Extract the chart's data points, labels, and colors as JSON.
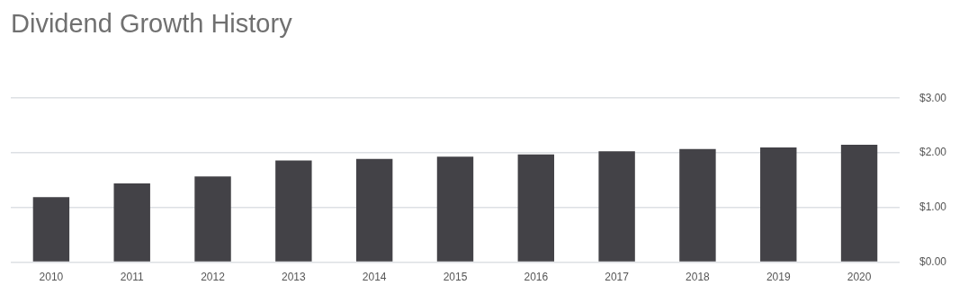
{
  "chart_data": {
    "type": "bar",
    "title": "Dividend Growth History",
    "categories": [
      "2010",
      "2011",
      "2012",
      "2013",
      "2014",
      "2015",
      "2016",
      "2017",
      "2018",
      "2019",
      "2020"
    ],
    "values": [
      1.19,
      1.44,
      1.57,
      1.86,
      1.89,
      1.93,
      1.97,
      2.03,
      2.07,
      2.1,
      2.15
    ],
    "color": "#434247",
    "ylim": [
      0,
      3
    ],
    "yticks": [
      {
        "value": 0,
        "label": "$0.00"
      },
      {
        "value": 1,
        "label": "$1.00"
      },
      {
        "value": 2,
        "label": "$2.00"
      },
      {
        "value": 3,
        "label": "$3.00"
      }
    ],
    "grid": "y"
  }
}
